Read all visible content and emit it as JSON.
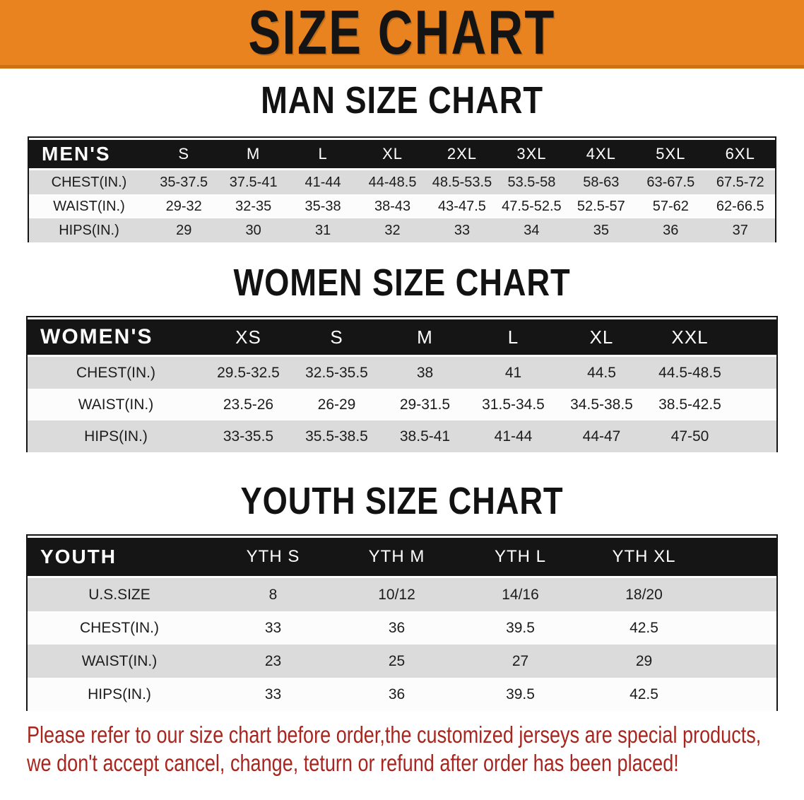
{
  "banner": {
    "title": "SIZE CHART"
  },
  "sections": [
    {
      "heading": "MAN SIZE CHART",
      "header_label": "MEN'S",
      "columns": [
        "S",
        "M",
        "L",
        "XL",
        "2XL",
        "3XL",
        "4XL",
        "5XL",
        "6XL"
      ],
      "rows": [
        {
          "label": "CHEST(IN.)",
          "values": [
            "35-37.5",
            "37.5-41",
            "41-44",
            "44-48.5",
            "48.5-53.5",
            "53.5-58",
            "58-63",
            "63-67.5",
            "67.5-72"
          ]
        },
        {
          "label": "WAIST(IN.)",
          "values": [
            "29-32",
            "32-35",
            "35-38",
            "38-43",
            "43-47.5",
            "47.5-52.5",
            "52.5-57",
            "57-62",
            "62-66.5"
          ]
        },
        {
          "label": "HIPS(IN.)",
          "values": [
            "29",
            "30",
            "31",
            "32",
            "33",
            "34",
            "35",
            "36",
            "37"
          ]
        }
      ]
    },
    {
      "heading": "WOMEN SIZE CHART",
      "header_label": "WOMEN'S",
      "columns": [
        "XS",
        "S",
        "M",
        "L",
        "XL",
        "XXL"
      ],
      "rows": [
        {
          "label": "CHEST(IN.)",
          "values": [
            "29.5-32.5",
            "32.5-35.5",
            "38",
            "41",
            "44.5",
            "44.5-48.5"
          ]
        },
        {
          "label": "WAIST(IN.)",
          "values": [
            "23.5-26",
            "26-29",
            "29-31.5",
            "31.5-34.5",
            "34.5-38.5",
            "38.5-42.5"
          ]
        },
        {
          "label": "HIPS(IN.)",
          "values": [
            "33-35.5",
            "35.5-38.5",
            "38.5-41",
            "41-44",
            "44-47",
            "47-50"
          ]
        }
      ]
    },
    {
      "heading": "YOUTH SIZE CHART",
      "header_label": "YOUTH",
      "columns": [
        "YTH S",
        "YTH M",
        "YTH L",
        "YTH XL"
      ],
      "rows": [
        {
          "label": "U.S.SIZE",
          "values": [
            "8",
            "10/12",
            "14/16",
            "18/20"
          ]
        },
        {
          "label": "CHEST(IN.)",
          "values": [
            "33",
            "36",
            "39.5",
            "42.5"
          ]
        },
        {
          "label": "WAIST(IN.)",
          "values": [
            "23",
            "25",
            "27",
            "29"
          ]
        },
        {
          "label": "HIPS(IN.)",
          "values": [
            "33",
            "36",
            "39.5",
            "42.5"
          ]
        }
      ]
    }
  ],
  "footer": {
    "line1": "Please refer to our size chart before order,the customized jerseys are special products,",
    "line2": "we don't accept cancel, change, teturn or refund after order has been placed!"
  },
  "colors": {
    "banner-bg": "#e8831f",
    "table-black": "#151515",
    "row-gray": "#dbdbdb",
    "footer-red": "#a8261f"
  }
}
